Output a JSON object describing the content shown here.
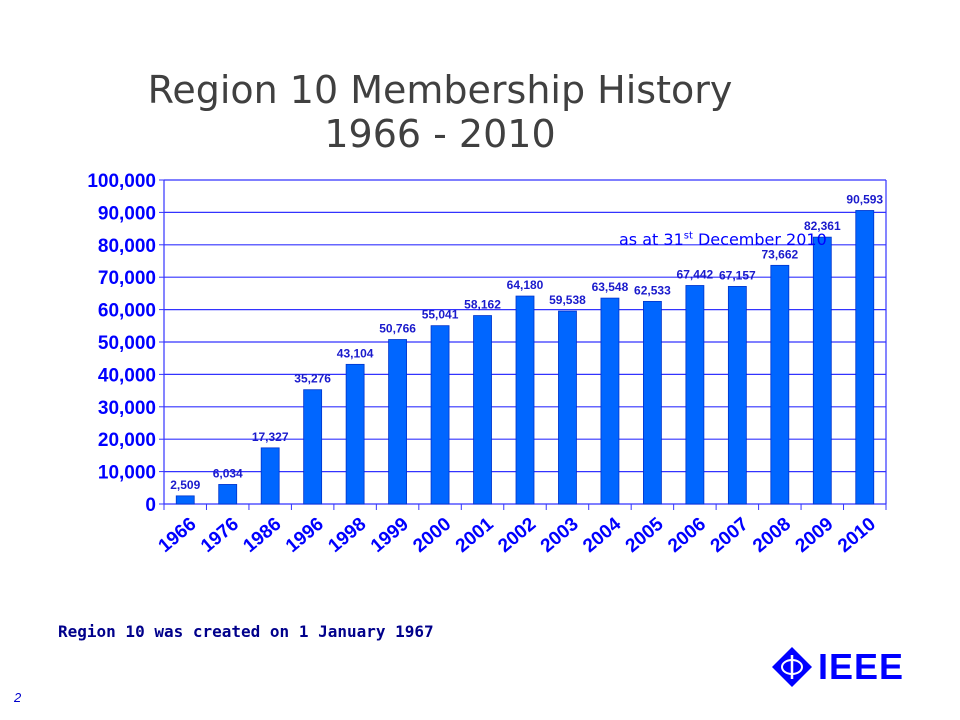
{
  "chart_data": {
    "type": "bar",
    "title": "Region 10 Membership History",
    "subtitle": "1966 - 2010",
    "categories": [
      "1966",
      "1976",
      "1986",
      "1996",
      "1998",
      "1999",
      "2000",
      "2001",
      "2002",
      "2003",
      "2004",
      "2005",
      "2006",
      "2007",
      "2008",
      "2009",
      "2010"
    ],
    "values": [
      2509,
      6034,
      17327,
      35276,
      43104,
      50766,
      55041,
      58162,
      64180,
      59538,
      63548,
      62533,
      67442,
      67157,
      73662,
      82361,
      90593
    ],
    "data_labels": [
      "2,509",
      "6,034",
      "17,327",
      "35,276",
      "43,104",
      "50,766",
      "55,041",
      "58,162",
      "64,180",
      "59,538",
      "63,548",
      "62,533",
      "67,442",
      "67,157",
      "73,662",
      "82,361",
      "90,593"
    ],
    "yticks": [
      0,
      10000,
      20000,
      30000,
      40000,
      50000,
      60000,
      70000,
      80000,
      90000,
      100000
    ],
    "ytick_labels": [
      "0",
      "10,000",
      "20,000",
      "30,000",
      "40,000",
      "50,000",
      "60,000",
      "70,000",
      "80,000",
      "90,000",
      "100,000"
    ],
    "ylim": [
      0,
      100000
    ],
    "xlabel": "",
    "ylabel": "",
    "grid": true,
    "bar_color": "#0066ff",
    "annotation": {
      "prefix": "as at 31",
      "sup": "st",
      "suffix": " December 2010"
    }
  },
  "note": "Region 10 was created on 1 January 1967",
  "page_number": "2",
  "logo_text": "IEEE"
}
